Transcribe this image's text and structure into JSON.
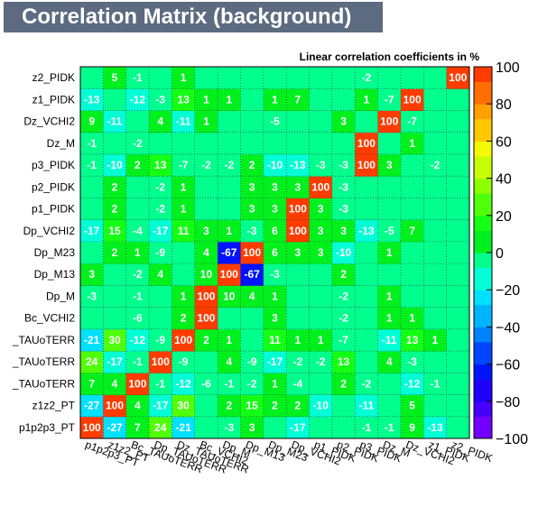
{
  "title": "Correlation Matrix (background)",
  "chart_data": {
    "type": "heatmap",
    "title": "Correlation Matrix (background)",
    "subtitle": "Linear correlation coefficients in %",
    "variables": [
      "p1p2p3_PT",
      "z1z2_PT",
      "Bc_TAUoTERR",
      "Dp_TAUoTERR",
      "Dz_TAUoTERR",
      "Bc_VCHI2",
      "Dp_M",
      "Dp_M13",
      "Dp_M23",
      "Dp_VCHI2",
      "p1_PIDK",
      "p2_PIDK",
      "p3_PIDK",
      "Dz_M",
      "Dz_VCHI2",
      "z1_PIDK",
      "z2_PIDK"
    ],
    "y_labels_visible": [
      "p1p2p3_PT",
      "z1z2_PT",
      "_TAUoTERR",
      "_TAUoTERR",
      "_TAUoTERR",
      "Bc_VCHI2",
      "Dp_M",
      "Dp_M13",
      "Dp_M23",
      "Dp_VCHI2",
      "p1_PIDK",
      "p2_PIDK",
      "p3_PIDK",
      "Dz_M",
      "Dz_VCHI2",
      "z1_PIDK",
      "z2_PIDK"
    ],
    "matrix": [
      [
        100,
        -27,
        7,
        24,
        -21,
        null,
        -3,
        3,
        null,
        -17,
        null,
        null,
        -1,
        -1,
        9,
        -13,
        null
      ],
      [
        -27,
        100,
        4,
        -17,
        30,
        null,
        2,
        15,
        2,
        2,
        -10,
        null,
        -11,
        null,
        5,
        null,
        null
      ],
      [
        7,
        4,
        100,
        -1,
        -12,
        -6,
        -1,
        -2,
        1,
        -4,
        null,
        2,
        -2,
        null,
        -12,
        -1,
        null
      ],
      [
        24,
        -17,
        -1,
        100,
        -9,
        null,
        4,
        -9,
        -17,
        -2,
        -2,
        13,
        null,
        4,
        -3,
        null,
        null
      ],
      [
        -21,
        30,
        -12,
        -9,
        100,
        2,
        1,
        null,
        11,
        1,
        1,
        -7,
        null,
        -11,
        13,
        1,
        null
      ],
      [
        null,
        null,
        -6,
        null,
        2,
        100,
        null,
        null,
        3,
        null,
        null,
        -2,
        null,
        1,
        1,
        null,
        null
      ],
      [
        -3,
        null,
        -1,
        null,
        1,
        100,
        10,
        4,
        1,
        null,
        null,
        -2,
        null,
        1,
        null,
        null,
        null
      ],
      [
        3,
        null,
        -2,
        4,
        null,
        10,
        100,
        -67,
        -3,
        null,
        null,
        2,
        null,
        null,
        null,
        null,
        null
      ],
      [
        null,
        2,
        1,
        -9,
        null,
        4,
        -67,
        100,
        6,
        3,
        3,
        -10,
        null,
        1,
        null,
        null,
        null
      ],
      [
        -17,
        15,
        -4,
        -17,
        11,
        3,
        1,
        -3,
        6,
        100,
        3,
        3,
        -13,
        -5,
        7,
        null,
        null
      ],
      [
        null,
        2,
        null,
        -2,
        1,
        null,
        null,
        3,
        3,
        100,
        3,
        -3,
        null,
        null,
        null,
        null,
        null
      ],
      [
        null,
        2,
        null,
        -2,
        1,
        null,
        null,
        3,
        3,
        3,
        100,
        -3,
        null,
        null,
        null,
        null,
        null
      ],
      [
        -1,
        -10,
        2,
        13,
        -7,
        -2,
        -2,
        2,
        -10,
        -13,
        -3,
        -3,
        100,
        3,
        null,
        -2,
        null
      ],
      [
        -1,
        null,
        -2,
        null,
        null,
        null,
        null,
        null,
        null,
        null,
        null,
        null,
        100,
        null,
        1,
        null,
        null
      ],
      [
        9,
        -11,
        null,
        4,
        -11,
        1,
        null,
        null,
        -5,
        null,
        null,
        3,
        null,
        100,
        -7,
        null,
        null
      ],
      [
        -13,
        null,
        -12,
        -3,
        13,
        1,
        1,
        null,
        1,
        7,
        null,
        null,
        1,
        -7,
        100,
        null,
        null
      ],
      [
        null,
        5,
        -1,
        null,
        1,
        null,
        null,
        null,
        null,
        null,
        null,
        null,
        -2,
        null,
        null,
        null,
        100
      ]
    ],
    "zlim": [
      -100,
      100
    ],
    "z_ticks": [
      "100",
      "80",
      "60",
      "40",
      "20",
      "0",
      "−20",
      "−40",
      "−60",
      "−80",
      "−100"
    ],
    "grid": true
  }
}
